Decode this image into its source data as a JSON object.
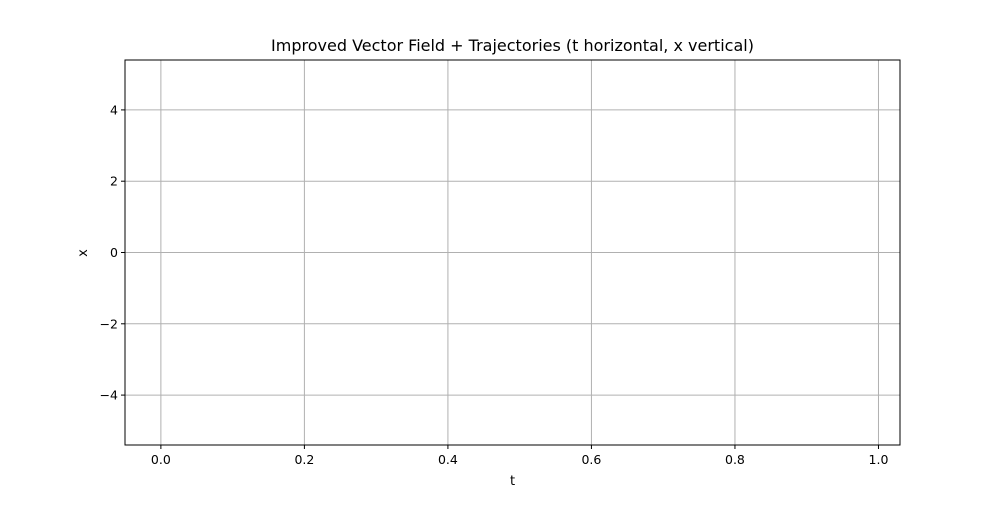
{
  "chart_data": {
    "type": "line",
    "title": "Improved Vector Field + Trajectories (t horizontal, x vertical)",
    "xlabel": "t",
    "ylabel": "x",
    "xlim": [
      -0.05,
      1.03
    ],
    "ylim": [
      -5.4,
      5.4
    ],
    "xticks": [
      0.0,
      0.2,
      0.4,
      0.6,
      0.8,
      1.0
    ],
    "xtick_labels": [
      "0.0",
      "0.2",
      "0.4",
      "0.6",
      "0.8",
      "1.0"
    ],
    "yticks": [
      -4,
      -2,
      0,
      2,
      4
    ],
    "ytick_labels": [
      "−4",
      "−2",
      "0",
      "2",
      "4"
    ],
    "grid": true,
    "series": [],
    "colors": {
      "grid": "#b0b0b0",
      "axes": "#000000",
      "background": "#ffffff"
    }
  }
}
